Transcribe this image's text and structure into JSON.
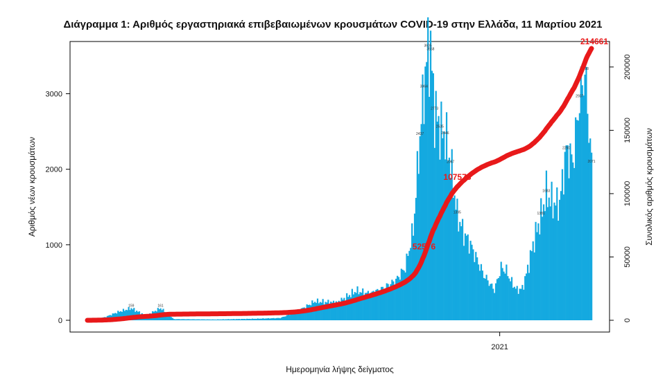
{
  "chart_data": {
    "type": "bar+line",
    "title": "Διάγραμμα 1: Αριθμός εργαστηριακά επιβεβαιωμένων κρουσμάτων COVID-19 στην Ελλάδα, 11 Μαρτίου 2021",
    "xlabel": "Ημερομηνία λήψης δείγματος",
    "ylabel_left": "Αριθμός νέων κρουσμάτων",
    "ylabel_right": "Συνολικός αριθμός κρουσμάτων",
    "ylim_left": [
      0,
      3600
    ],
    "ylim_right": [
      0,
      214661
    ],
    "yticks_left": [
      "0",
      "1000",
      "2000",
      "3000"
    ],
    "yticks_left_values": [
      0,
      1000,
      2000,
      3000
    ],
    "yticks_right": [
      "0",
      "50000",
      "100000",
      "150000",
      "200000"
    ],
    "yticks_right_values": [
      0,
      50000,
      100000,
      150000,
      200000
    ],
    "x_tick_label": "2021",
    "x_tick_date": "2021-01-01",
    "x_range": [
      "2020-02-26",
      "2021-03-11"
    ],
    "grid": false,
    "legend": "none",
    "bar_color": "#14a9e0",
    "line_color": "#e8191a",
    "cumulative_callouts": [
      {
        "date": "2020-11-03",
        "label": "52576",
        "value": 52576
      },
      {
        "date": "2020-11-28",
        "label": "107578",
        "value": 107578
      },
      {
        "date": "2021-03-11",
        "label": "214661",
        "value": 214661
      }
    ],
    "daily_anchor_points": [
      [
        "2020-02-26",
        1
      ],
      [
        "2020-03-10",
        40
      ],
      [
        "2020-03-20",
        110
      ],
      [
        "2020-03-30",
        159
      ],
      [
        "2020-04-10",
        60
      ],
      [
        "2020-04-21",
        161
      ],
      [
        "2020-05-01",
        15
      ],
      [
        "2020-06-01",
        10
      ],
      [
        "2020-07-01",
        20
      ],
      [
        "2020-07-20",
        30
      ],
      [
        "2020-08-01",
        110
      ],
      [
        "2020-08-15",
        250
      ],
      [
        "2020-09-01",
        230
      ],
      [
        "2020-09-15",
        390
      ],
      [
        "2020-09-25",
        350
      ],
      [
        "2020-10-05",
        420
      ],
      [
        "2020-10-15",
        530
      ],
      [
        "2020-10-22",
        700
      ],
      [
        "2020-10-28",
        1200
      ],
      [
        "2020-11-02",
        2437
      ],
      [
        "2020-11-05",
        3064
      ],
      [
        "2020-11-08",
        3605
      ],
      [
        "2020-11-10",
        3558
      ],
      [
        "2020-11-13",
        2773
      ],
      [
        "2020-11-17",
        2535
      ],
      [
        "2020-11-21",
        2446
      ],
      [
        "2020-11-25",
        2067
      ],
      [
        "2020-11-30",
        1395
      ],
      [
        "2020-12-05",
        1150
      ],
      [
        "2020-12-10",
        1000
      ],
      [
        "2020-12-15",
        800
      ],
      [
        "2020-12-20",
        600
      ],
      [
        "2020-12-24",
        500
      ],
      [
        "2020-12-28",
        400
      ],
      [
        "2021-01-02",
        700
      ],
      [
        "2021-01-06",
        650
      ],
      [
        "2021-01-10",
        500
      ],
      [
        "2021-01-14",
        400
      ],
      [
        "2021-01-18",
        420
      ],
      [
        "2021-01-22",
        680
      ],
      [
        "2021-01-27",
        1076
      ],
      [
        "2021-02-01",
        1381
      ],
      [
        "2021-02-05",
        1683
      ],
      [
        "2021-02-10",
        1546
      ],
      [
        "2021-02-15",
        1550
      ],
      [
        "2021-02-20",
        2250
      ],
      [
        "2021-02-25",
        2100
      ],
      [
        "2021-03-02",
        2937
      ],
      [
        "2021-03-06",
        3298
      ],
      [
        "2021-03-11",
        2071
      ]
    ],
    "visible_bar_labels": [
      {
        "date": "2020-03-30",
        "value": 159
      },
      {
        "date": "2020-04-21",
        "value": 161
      },
      {
        "date": "2020-11-08",
        "value": 3605
      },
      {
        "date": "2020-11-10",
        "value": 3558
      },
      {
        "date": "2020-11-05",
        "value": 3064
      },
      {
        "date": "2020-11-13",
        "value": 2773
      },
      {
        "date": "2020-11-17",
        "value": 2535
      },
      {
        "date": "2020-11-21",
        "value": 2446
      },
      {
        "date": "2020-11-02",
        "value": 2437
      },
      {
        "date": "2020-11-25",
        "value": 2067
      },
      {
        "date": "2020-11-30",
        "value": 1395
      },
      {
        "date": "2021-02-05",
        "value": 1683
      },
      {
        "date": "2021-02-01",
        "value": 1381
      },
      {
        "date": "2021-02-20",
        "value": 2250
      },
      {
        "date": "2021-03-02",
        "value": 2937
      },
      {
        "date": "2021-03-06",
        "value": 3298
      },
      {
        "date": "2021-03-11",
        "value": 2071
      }
    ]
  }
}
